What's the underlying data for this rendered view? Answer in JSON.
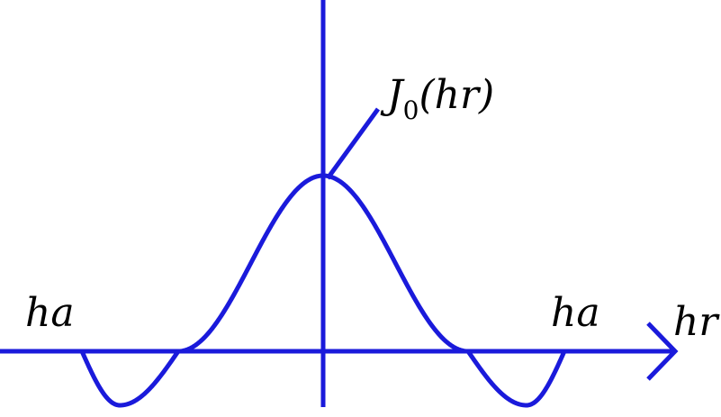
{
  "colors": {
    "curve": "#1a1adb",
    "axes": "#1a1adb",
    "text": "#000000",
    "background": "#ffffff"
  },
  "labels": {
    "function_name": "J",
    "function_subscript": "0",
    "function_argument": "(hr)",
    "left_boundary": "ha",
    "right_boundary": "ha",
    "horizontal_axis": "hr"
  }
}
